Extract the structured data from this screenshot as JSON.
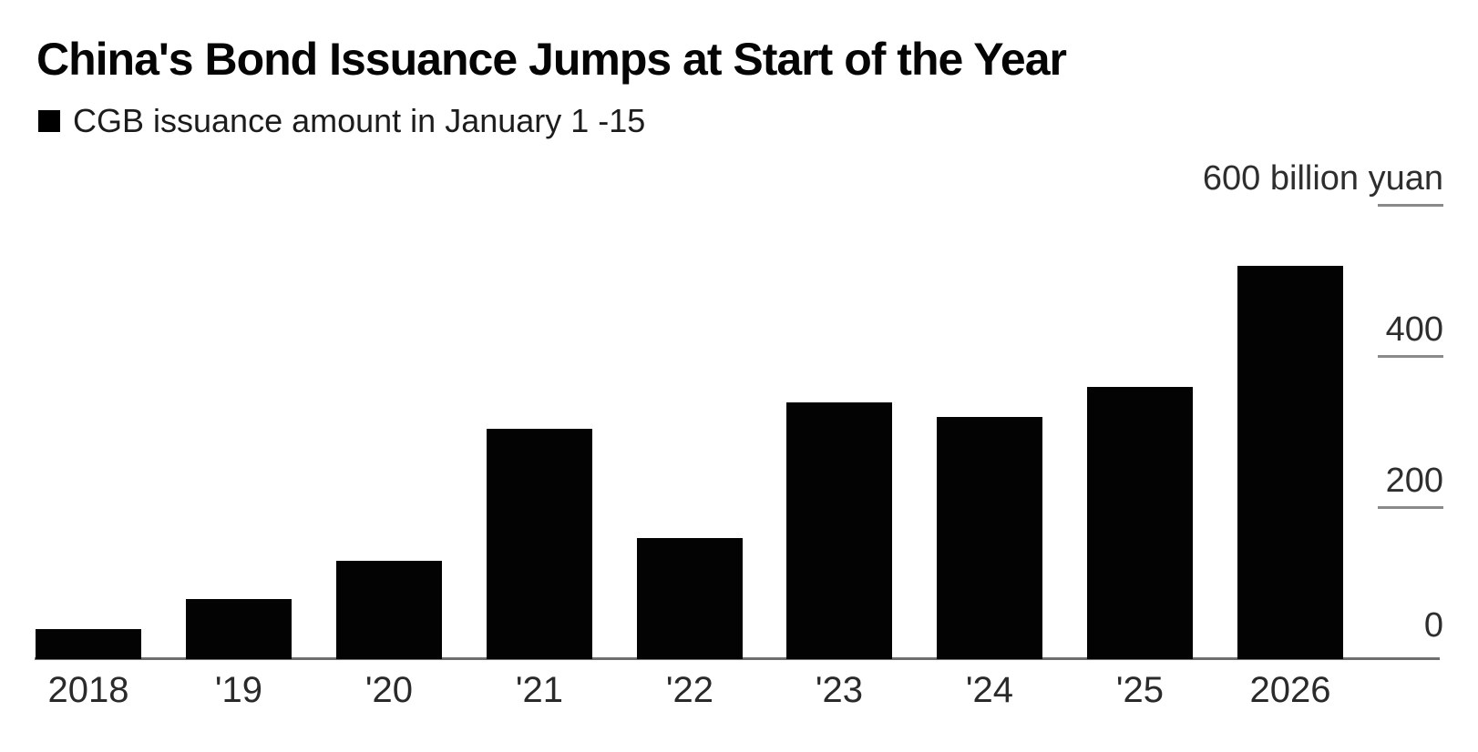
{
  "chart_data": {
    "type": "bar",
    "title": "China's Bond Issuance Jumps at Start of the Year",
    "legend_label": "CGB issuance amount in January 1 -15",
    "legend_position": "top-left",
    "unit": "billion yuan",
    "xlabel": "",
    "ylabel": "",
    "categories": [
      "2018",
      "'19",
      "'20",
      "'21",
      "'22",
      "'23",
      "'24",
      "'25",
      "2026"
    ],
    "values": [
      40,
      80,
      130,
      305,
      160,
      340,
      320,
      360,
      520
    ],
    "ylim": [
      0,
      600
    ],
    "yticks": [
      {
        "value": 600,
        "label": "600 billion yuan"
      },
      {
        "value": 400,
        "label": "400"
      },
      {
        "value": 200,
        "label": "200"
      },
      {
        "value": 0,
        "label": "0"
      }
    ],
    "grid": false,
    "bar_color": "#030303",
    "axis_color": "#6f6f6f",
    "tick_color": "#8a8a8a",
    "text_color": "#1c1c1c",
    "background_color": "#ffffff"
  }
}
